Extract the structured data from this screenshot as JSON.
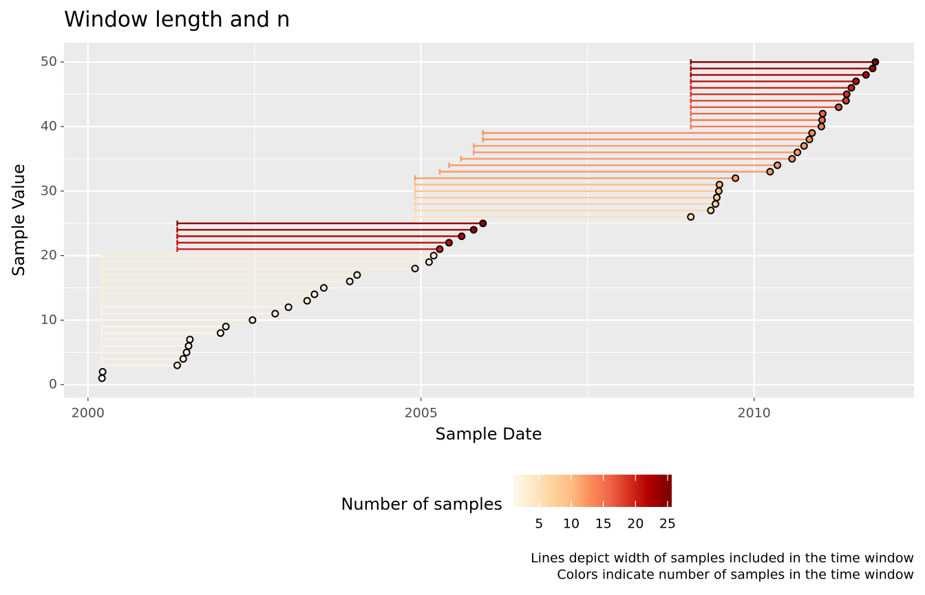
{
  "chart_data": {
    "type": "window-scatter",
    "title": "Window length and n",
    "x_label": "Sample Date",
    "y_label": "Sample Value",
    "legend_title": "Number of samples",
    "captions": [
      "Lines depict width of samples included in the time window",
      "Colors indicate number of samples in the time window"
    ],
    "x": [
      2000.21,
      2000.22,
      2001.34,
      2001.43,
      2001.48,
      2001.51,
      2001.53,
      2001.99,
      2002.07,
      2002.47,
      2002.81,
      2003.01,
      2003.29,
      2003.4,
      2003.54,
      2003.93,
      2004.04,
      2004.91,
      2005.12,
      2005.19,
      2005.28,
      2005.42,
      2005.61,
      2005.79,
      2005.93,
      2009.05,
      2009.35,
      2009.42,
      2009.44,
      2009.47,
      2009.48,
      2009.72,
      2010.24,
      2010.35,
      2010.57,
      2010.65,
      2010.75,
      2010.83,
      2010.87,
      2011.01,
      2011.02,
      2011.03,
      2011.27,
      2011.38,
      2011.39,
      2011.46,
      2011.53,
      2011.68,
      2011.78,
      2011.82
    ],
    "values": [
      1,
      2,
      3,
      4,
      5,
      6,
      7,
      8,
      9,
      10,
      11,
      12,
      13,
      14,
      15,
      16,
      17,
      18,
      19,
      20,
      21,
      22,
      23,
      24,
      25,
      26,
      27,
      28,
      29,
      30,
      31,
      32,
      33,
      34,
      35,
      36,
      37,
      38,
      39,
      40,
      41,
      42,
      43,
      44,
      45,
      46,
      47,
      48,
      49,
      50
    ],
    "window_start": [
      2000.21,
      2000.22,
      2000.21,
      2000.21,
      2000.21,
      2000.21,
      2000.21,
      2000.21,
      2000.21,
      2000.21,
      2000.21,
      2000.21,
      2000.21,
      2000.21,
      2000.21,
      2000.21,
      2000.21,
      2000.21,
      2000.21,
      2000.21,
      2001.34,
      2001.34,
      2001.34,
      2001.34,
      2001.34,
      2004.91,
      2004.91,
      2004.91,
      2004.91,
      2004.91,
      2004.91,
      2004.91,
      2005.28,
      2005.42,
      2005.6,
      2005.79,
      2005.79,
      2005.93,
      2005.93,
      2009.05,
      2009.05,
      2009.05,
      2009.05,
      2009.05,
      2009.05,
      2009.05,
      2009.05,
      2009.05,
      2009.05,
      2009.05
    ],
    "n": [
      1,
      1,
      2,
      2,
      2,
      2,
      2,
      2,
      2,
      2,
      2,
      2,
      3,
      3,
      3,
      3,
      3,
      3,
      3,
      3,
      20,
      21,
      22,
      23,
      24,
      5,
      6,
      7,
      8,
      9,
      10,
      12,
      12,
      12,
      12,
      12,
      12,
      13,
      13,
      14,
      15,
      16,
      17,
      18,
      19,
      20,
      21,
      22,
      23,
      25
    ],
    "xlim": [
      1999.64,
      2012.4
    ],
    "ylim": [
      -2.0,
      53.0
    ],
    "xticks": [
      2000,
      2005,
      2010
    ],
    "yticks": [
      0,
      10,
      20,
      30,
      40,
      50
    ],
    "x_minor_ticks": [
      2002.5,
      2007.5
    ],
    "y_minor_ticks": [
      5,
      15,
      25,
      35,
      45
    ],
    "color_limits": [
      1,
      25
    ],
    "color_ticks": [
      5,
      10,
      15,
      20,
      25
    ],
    "colors": [
      "#FFF7EC",
      "#FEE8C8",
      "#FDD49E",
      "#FDBB84",
      "#FC8D59",
      "#EF6548",
      "#D7301F",
      "#B30000",
      "#7F0000"
    ],
    "point_outline": "#000000",
    "panel_color": "#EBEBEB",
    "grid": true
  }
}
